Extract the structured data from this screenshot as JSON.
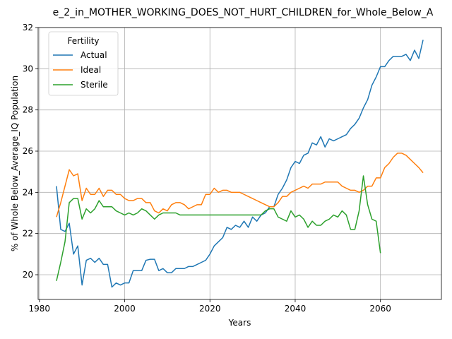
{
  "chart_data": {
    "type": "line",
    "title": "e_2_in_MOTHER_WORKING_DOES_NOT_HURT_CHILDREN_for_Whole_Below_A",
    "xlabel": "Years",
    "ylabel": "% of Whole Below_Average_IQ Population",
    "xlim": [
      1979.7,
      2074.3
    ],
    "ylim": [
      18.8,
      32.0
    ],
    "xticks": [
      1980,
      2000,
      2020,
      2040,
      2060
    ],
    "yticks": [
      20,
      22,
      24,
      26,
      28,
      30,
      32
    ],
    "grid": true,
    "legend": {
      "title": "Fertility",
      "placement": "upper-left"
    },
    "series": [
      {
        "name": "Actual",
        "color": "#1f77b4",
        "points": [
          [
            1984,
            24.3
          ],
          [
            1985,
            22.2
          ],
          [
            1986,
            22.1
          ],
          [
            1987,
            22.5
          ],
          [
            1988,
            21.0
          ],
          [
            1989,
            21.4
          ],
          [
            1990,
            19.5
          ],
          [
            1991,
            20.7
          ],
          [
            1992,
            20.8
          ],
          [
            1993,
            20.6
          ],
          [
            1994,
            20.8
          ],
          [
            1995,
            20.5
          ],
          [
            1996,
            20.5
          ],
          [
            1997,
            19.4
          ],
          [
            1998,
            19.6
          ],
          [
            1999,
            19.5
          ],
          [
            2000,
            19.6
          ],
          [
            2001,
            19.6
          ],
          [
            2002,
            20.2
          ],
          [
            2003,
            20.2
          ],
          [
            2004,
            20.2
          ],
          [
            2005,
            20.7
          ],
          [
            2006,
            20.75
          ],
          [
            2007,
            20.75
          ],
          [
            2008,
            20.2
          ],
          [
            2009,
            20.3
          ],
          [
            2010,
            20.1
          ],
          [
            2011,
            20.1
          ],
          [
            2012,
            20.3
          ],
          [
            2013,
            20.3
          ],
          [
            2014,
            20.3
          ],
          [
            2015,
            20.4
          ],
          [
            2016,
            20.4
          ],
          [
            2017,
            20.5
          ],
          [
            2018,
            20.6
          ],
          [
            2019,
            20.7
          ],
          [
            2020,
            21.0
          ],
          [
            2021,
            21.4
          ],
          [
            2022,
            21.6
          ],
          [
            2023,
            21.8
          ],
          [
            2024,
            22.3
          ],
          [
            2025,
            22.2
          ],
          [
            2026,
            22.4
          ],
          [
            2027,
            22.3
          ],
          [
            2028,
            22.6
          ],
          [
            2029,
            22.3
          ],
          [
            2030,
            22.8
          ],
          [
            2031,
            22.6
          ],
          [
            2032,
            22.9
          ],
          [
            2033,
            23.0
          ],
          [
            2034,
            23.3
          ],
          [
            2035,
            23.3
          ],
          [
            2036,
            23.9
          ],
          [
            2037,
            24.2
          ],
          [
            2038,
            24.6
          ],
          [
            2039,
            25.2
          ],
          [
            2040,
            25.5
          ],
          [
            2041,
            25.4
          ],
          [
            2042,
            25.8
          ],
          [
            2043,
            25.9
          ],
          [
            2044,
            26.4
          ],
          [
            2045,
            26.3
          ],
          [
            2046,
            26.7
          ],
          [
            2047,
            26.2
          ],
          [
            2048,
            26.6
          ],
          [
            2049,
            26.5
          ],
          [
            2050,
            26.6
          ],
          [
            2051,
            26.7
          ],
          [
            2052,
            26.8
          ],
          [
            2053,
            27.1
          ],
          [
            2054,
            27.3
          ],
          [
            2055,
            27.6
          ],
          [
            2056,
            28.1
          ],
          [
            2057,
            28.5
          ],
          [
            2058,
            29.2
          ],
          [
            2059,
            29.6
          ],
          [
            2060,
            30.1
          ],
          [
            2061,
            30.1
          ],
          [
            2062,
            30.4
          ],
          [
            2063,
            30.6
          ],
          [
            2064,
            30.6
          ],
          [
            2065,
            30.6
          ],
          [
            2066,
            30.7
          ],
          [
            2067,
            30.4
          ],
          [
            2068,
            30.9
          ],
          [
            2069,
            30.5
          ],
          [
            2070,
            31.4
          ]
        ]
      },
      {
        "name": "Ideal",
        "color": "#ff7f0e",
        "points": [
          [
            1984,
            22.8
          ],
          [
            1985,
            23.5
          ],
          [
            1986,
            24.3
          ],
          [
            1987,
            25.1
          ],
          [
            1988,
            24.8
          ],
          [
            1989,
            24.9
          ],
          [
            1990,
            23.6
          ],
          [
            1991,
            24.2
          ],
          [
            1992,
            23.9
          ],
          [
            1993,
            23.9
          ],
          [
            1994,
            24.2
          ],
          [
            1995,
            23.8
          ],
          [
            1996,
            24.1
          ],
          [
            1997,
            24.1
          ],
          [
            1998,
            23.9
          ],
          [
            1999,
            23.9
          ],
          [
            2000,
            23.7
          ],
          [
            2001,
            23.6
          ],
          [
            2002,
            23.6
          ],
          [
            2003,
            23.7
          ],
          [
            2004,
            23.7
          ],
          [
            2005,
            23.5
          ],
          [
            2006,
            23.5
          ],
          [
            2007,
            23.1
          ],
          [
            2008,
            23.0
          ],
          [
            2009,
            23.2
          ],
          [
            2010,
            23.1
          ],
          [
            2011,
            23.4
          ],
          [
            2012,
            23.5
          ],
          [
            2013,
            23.5
          ],
          [
            2014,
            23.4
          ],
          [
            2015,
            23.2
          ],
          [
            2016,
            23.3
          ],
          [
            2017,
            23.4
          ],
          [
            2018,
            23.4
          ],
          [
            2019,
            23.9
          ],
          [
            2020,
            23.9
          ],
          [
            2021,
            24.2
          ],
          [
            2022,
            24.0
          ],
          [
            2023,
            24.1
          ],
          [
            2024,
            24.1
          ],
          [
            2025,
            24.0
          ],
          [
            2026,
            24.0
          ],
          [
            2027,
            24.0
          ],
          [
            2028,
            23.9
          ],
          [
            2029,
            23.8
          ],
          [
            2030,
            23.7
          ],
          [
            2031,
            23.6
          ],
          [
            2032,
            23.5
          ],
          [
            2033,
            23.4
          ],
          [
            2034,
            23.3
          ],
          [
            2035,
            23.3
          ],
          [
            2036,
            23.5
          ],
          [
            2037,
            23.8
          ],
          [
            2038,
            23.8
          ],
          [
            2039,
            24.0
          ],
          [
            2040,
            24.1
          ],
          [
            2041,
            24.2
          ],
          [
            2042,
            24.3
          ],
          [
            2043,
            24.2
          ],
          [
            2044,
            24.4
          ],
          [
            2045,
            24.4
          ],
          [
            2046,
            24.4
          ],
          [
            2047,
            24.5
          ],
          [
            2048,
            24.5
          ],
          [
            2049,
            24.5
          ],
          [
            2050,
            24.5
          ],
          [
            2051,
            24.3
          ],
          [
            2052,
            24.2
          ],
          [
            2053,
            24.1
          ],
          [
            2054,
            24.1
          ],
          [
            2055,
            24.0
          ],
          [
            2056,
            24.1
          ],
          [
            2057,
            24.3
          ],
          [
            2058,
            24.3
          ],
          [
            2059,
            24.7
          ],
          [
            2060,
            24.7
          ],
          [
            2061,
            25.2
          ],
          [
            2062,
            25.4
          ],
          [
            2063,
            25.7
          ],
          [
            2064,
            25.9
          ],
          [
            2065,
            25.9
          ],
          [
            2066,
            25.8
          ],
          [
            2067,
            25.6
          ],
          [
            2068,
            25.4
          ],
          [
            2069,
            25.2
          ],
          [
            2070,
            24.95
          ]
        ]
      },
      {
        "name": "Sterile",
        "color": "#2ca02c",
        "points": [
          [
            1984,
            19.7
          ],
          [
            1985,
            20.6
          ],
          [
            1986,
            21.6
          ],
          [
            1987,
            23.5
          ],
          [
            1988,
            23.7
          ],
          [
            1989,
            23.7
          ],
          [
            1990,
            22.7
          ],
          [
            1991,
            23.2
          ],
          [
            1992,
            23.0
          ],
          [
            1993,
            23.2
          ],
          [
            1994,
            23.6
          ],
          [
            1995,
            23.3
          ],
          [
            1996,
            23.3
          ],
          [
            1997,
            23.3
          ],
          [
            1998,
            23.1
          ],
          [
            1999,
            23.0
          ],
          [
            2000,
            22.9
          ],
          [
            2001,
            23.0
          ],
          [
            2002,
            22.9
          ],
          [
            2003,
            23.0
          ],
          [
            2004,
            23.2
          ],
          [
            2005,
            23.1
          ],
          [
            2006,
            22.9
          ],
          [
            2007,
            22.7
          ],
          [
            2008,
            22.9
          ],
          [
            2009,
            23.0
          ],
          [
            2010,
            23.0
          ],
          [
            2011,
            23.0
          ],
          [
            2012,
            23.0
          ],
          [
            2013,
            22.9
          ],
          [
            2014,
            22.9
          ],
          [
            2015,
            22.9
          ],
          [
            2016,
            22.9
          ],
          [
            2017,
            22.9
          ],
          [
            2018,
            22.9
          ],
          [
            2019,
            22.9
          ],
          [
            2020,
            22.9
          ],
          [
            2021,
            22.9
          ],
          [
            2022,
            22.9
          ],
          [
            2023,
            22.9
          ],
          [
            2024,
            22.9
          ],
          [
            2025,
            22.9
          ],
          [
            2026,
            22.9
          ],
          [
            2027,
            22.9
          ],
          [
            2028,
            22.9
          ],
          [
            2029,
            22.9
          ],
          [
            2030,
            22.9
          ],
          [
            2031,
            22.9
          ],
          [
            2032,
            22.9
          ],
          [
            2033,
            23.1
          ],
          [
            2034,
            23.2
          ],
          [
            2035,
            23.2
          ],
          [
            2036,
            22.8
          ],
          [
            2037,
            22.7
          ],
          [
            2038,
            22.6
          ],
          [
            2039,
            23.1
          ],
          [
            2040,
            22.8
          ],
          [
            2041,
            22.9
          ],
          [
            2042,
            22.7
          ],
          [
            2043,
            22.3
          ],
          [
            2044,
            22.6
          ],
          [
            2045,
            22.4
          ],
          [
            2046,
            22.4
          ],
          [
            2047,
            22.6
          ],
          [
            2048,
            22.7
          ],
          [
            2049,
            22.9
          ],
          [
            2050,
            22.8
          ],
          [
            2051,
            23.1
          ],
          [
            2052,
            22.9
          ],
          [
            2053,
            22.2
          ],
          [
            2054,
            22.2
          ],
          [
            2055,
            23.1
          ],
          [
            2056,
            24.8
          ],
          [
            2057,
            23.4
          ],
          [
            2058,
            22.7
          ],
          [
            2059,
            22.6
          ],
          [
            2060,
            21.05
          ]
        ]
      }
    ]
  }
}
